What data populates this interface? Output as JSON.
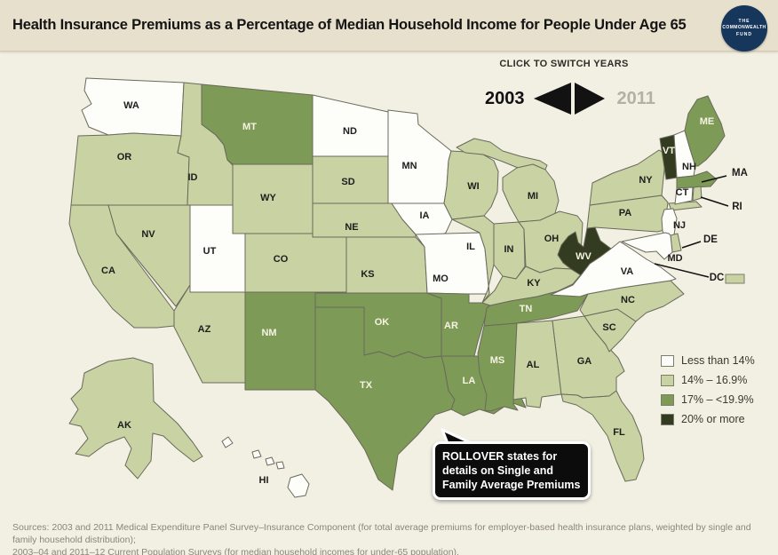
{
  "header": {
    "title": "Health Insurance Premiums as a Percentage of Median Household Income for People Under Age 65",
    "logo": {
      "line1": "THE",
      "line2": "COMMONWEALTH",
      "line3": "FUND"
    }
  },
  "controls": {
    "caption": "CLICK TO SWITCH YEARS",
    "active_year": "2003",
    "years": [
      {
        "label": "2003",
        "active": true
      },
      {
        "label": "2011",
        "active": false
      }
    ]
  },
  "legend": {
    "items": [
      {
        "label": "Less than 14%",
        "category": "lt14",
        "color": "#fdfdf9"
      },
      {
        "label": "14% – 16.9%",
        "category": "c14",
        "color": "#c9d2a2"
      },
      {
        "label": "17% – <19.9%",
        "category": "c17",
        "color": "#7e9a57"
      },
      {
        "label": "20% or more",
        "category": "c20",
        "color": "#333c20"
      }
    ]
  },
  "map": {
    "states": [
      {
        "id": "WA",
        "label": "WA",
        "category": "lt14"
      },
      {
        "id": "OR",
        "label": "OR",
        "category": "c14"
      },
      {
        "id": "CA",
        "label": "CA",
        "category": "c14"
      },
      {
        "id": "NV",
        "label": "NV",
        "category": "c14"
      },
      {
        "id": "ID",
        "label": "ID",
        "category": "c14"
      },
      {
        "id": "MT",
        "label": "MT",
        "category": "c17"
      },
      {
        "id": "WY",
        "label": "WY",
        "category": "c14"
      },
      {
        "id": "UT",
        "label": "UT",
        "category": "lt14"
      },
      {
        "id": "CO",
        "label": "CO",
        "category": "c14"
      },
      {
        "id": "AZ",
        "label": "AZ",
        "category": "c14"
      },
      {
        "id": "NM",
        "label": "NM",
        "category": "c17"
      },
      {
        "id": "ND",
        "label": "ND",
        "category": "lt14"
      },
      {
        "id": "SD",
        "label": "SD",
        "category": "c14"
      },
      {
        "id": "NE",
        "label": "NE",
        "category": "c14"
      },
      {
        "id": "KS",
        "label": "KS",
        "category": "c14"
      },
      {
        "id": "MN",
        "label": "MN",
        "category": "lt14"
      },
      {
        "id": "IA",
        "label": "IA",
        "category": "lt14"
      },
      {
        "id": "MO",
        "label": "MO",
        "category": "lt14"
      },
      {
        "id": "OK",
        "label": "OK",
        "category": "c17"
      },
      {
        "id": "TX",
        "label": "TX",
        "category": "c17"
      },
      {
        "id": "AR",
        "label": "AR",
        "category": "c17"
      },
      {
        "id": "LA",
        "label": "LA",
        "category": "c17"
      },
      {
        "id": "WI",
        "label": "WI",
        "category": "c14"
      },
      {
        "id": "IL",
        "label": "IL",
        "category": "c14"
      },
      {
        "id": "IN",
        "label": "IN",
        "category": "c14"
      },
      {
        "id": "MI",
        "label": "MI",
        "category": "c14"
      },
      {
        "id": "OH",
        "label": "OH",
        "category": "c14"
      },
      {
        "id": "KY",
        "label": "KY",
        "category": "c14"
      },
      {
        "id": "TN",
        "label": "TN",
        "category": "c17"
      },
      {
        "id": "MS",
        "label": "MS",
        "category": "c17"
      },
      {
        "id": "AL",
        "label": "AL",
        "category": "c14"
      },
      {
        "id": "GA",
        "label": "GA",
        "category": "c14"
      },
      {
        "id": "SC",
        "label": "SC",
        "category": "c14"
      },
      {
        "id": "NC",
        "label": "NC",
        "category": "c14"
      },
      {
        "id": "FL",
        "label": "FL",
        "category": "c14"
      },
      {
        "id": "VA",
        "label": "VA",
        "category": "lt14"
      },
      {
        "id": "WV",
        "label": "WV",
        "category": "c20"
      },
      {
        "id": "PA",
        "label": "PA",
        "category": "c14"
      },
      {
        "id": "NY",
        "label": "NY",
        "category": "c14"
      },
      {
        "id": "VT",
        "label": "VT",
        "category": "c20"
      },
      {
        "id": "NH",
        "label": "NH",
        "category": "lt14"
      },
      {
        "id": "ME",
        "label": "ME",
        "category": "c17"
      },
      {
        "id": "MA",
        "label": "MA",
        "category": "c17"
      },
      {
        "id": "CT",
        "label": "CT",
        "category": "lt14"
      },
      {
        "id": "RI",
        "label": "RI",
        "category": "c14"
      },
      {
        "id": "NJ",
        "label": "NJ",
        "category": "lt14"
      },
      {
        "id": "DE",
        "label": "DE",
        "category": "c14"
      },
      {
        "id": "MD",
        "label": "MD",
        "category": "lt14"
      },
      {
        "id": "DC",
        "label": "DC",
        "category": "c14"
      },
      {
        "id": "AK",
        "label": "AK",
        "category": "c14"
      },
      {
        "id": "HI",
        "label": "HI",
        "category": "lt14"
      }
    ]
  },
  "tooltip": {
    "line1": "ROLLOVER states for",
    "line2": "details on Single and",
    "line3": "Family Average Premiums"
  },
  "sources": {
    "line1": "Sources: 2003 and 2011 Medical Expenditure Panel Survey–Insurance Component (for total average premiums for employer-based health insurance plans, weighted by single and family household distribution);",
    "line2": "2003–04 and 2011–12 Current Population Surveys (for median household incomes for under-65 population)."
  },
  "colors": {
    "background": "#f2efe3",
    "header_bg": "#e7e0cc",
    "state_border": "#6a6a5c",
    "label_dark": "#1d1d1d",
    "label_light": "#f6f3e3",
    "year_inactive": "#b4b1a3",
    "logo_navy": "#16365b",
    "callout_line": "#111111"
  }
}
